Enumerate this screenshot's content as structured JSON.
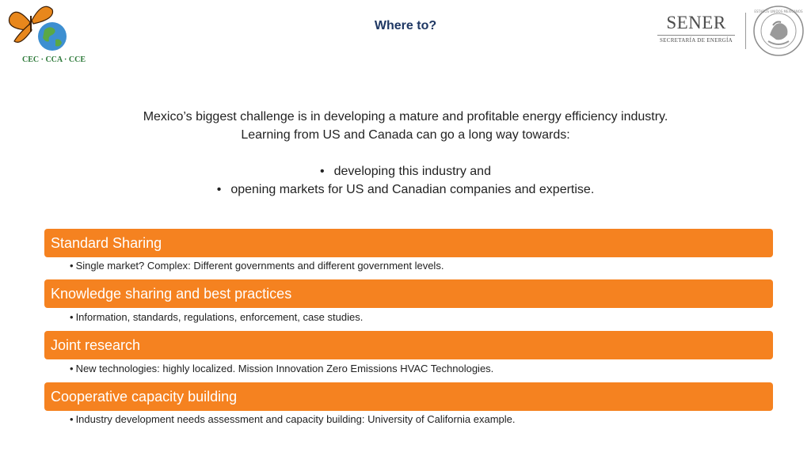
{
  "header": {
    "title": "Where to?",
    "cec_logo_text": "CEC · CCA · CCE",
    "sener_logo": {
      "name": "SENER",
      "subtitle": "SECRETARÍA DE ENERGÍA"
    },
    "seal_label": "ESTADOS UNIDOS MEXICANOS"
  },
  "intro": {
    "line1": "Mexico’s biggest challenge is in developing a mature and profitable energy efficiency industry.",
    "line2": "Learning from US and Canada can go a long way towards:",
    "bullets": [
      "developing this industry and",
      "opening markets for US and Canadian companies and expertise."
    ]
  },
  "sections": [
    {
      "heading": "Standard Sharing",
      "detail": "Single market? Complex: Different governments and different government levels."
    },
    {
      "heading": "Knowledge sharing and best practices",
      "detail": "Information, standards, regulations, enforcement, case studies."
    },
    {
      "heading": "Joint research",
      "detail": "New technologies: highly localized. Mission Innovation Zero Emissions HVAC Technologies."
    },
    {
      "heading": "Cooperative capacity building",
      "detail": "Industry development needs assessment and capacity building: University of California example."
    }
  ],
  "colors": {
    "accent": "#f58220",
    "title": "#1f3864"
  },
  "glyphs": {
    "bullet": "•"
  }
}
